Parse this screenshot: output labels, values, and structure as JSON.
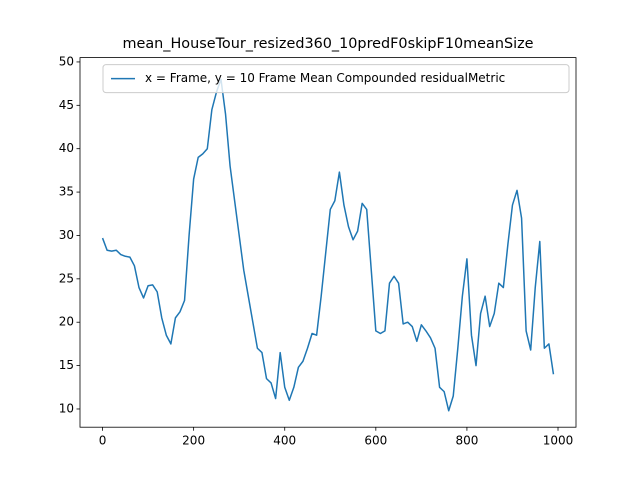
{
  "chart_data": {
    "type": "line",
    "title": "mean_HouseTour_resized360_10predF0skipF10meanSize",
    "x": [
      0,
      10,
      20,
      30,
      40,
      50,
      60,
      70,
      80,
      90,
      100,
      110,
      120,
      130,
      140,
      150,
      160,
      170,
      180,
      190,
      200,
      210,
      220,
      230,
      240,
      250,
      260,
      270,
      280,
      290,
      300,
      310,
      320,
      330,
      340,
      350,
      360,
      370,
      380,
      390,
      400,
      410,
      420,
      430,
      440,
      450,
      460,
      470,
      480,
      490,
      500,
      510,
      520,
      530,
      540,
      550,
      560,
      570,
      580,
      590,
      600,
      610,
      620,
      630,
      640,
      650,
      660,
      670,
      680,
      690,
      700,
      710,
      720,
      730,
      740,
      750,
      760,
      770,
      780,
      790,
      800,
      810,
      820,
      830,
      840,
      850,
      860,
      870,
      880,
      890,
      900,
      910,
      920,
      930,
      940,
      950,
      960,
      970,
      980,
      990
    ],
    "series": [
      {
        "name": "x = Frame, y = 10 Frame Mean Compounded residualMetric",
        "color": "#1f77b4",
        "values": [
          29.7,
          28.3,
          28.2,
          28.3,
          27.8,
          27.6,
          27.5,
          26.5,
          24,
          22.8,
          24.2,
          24.3,
          23.5,
          20.5,
          18.5,
          17.5,
          20.5,
          21.2,
          22.5,
          30,
          36.5,
          39,
          39.4,
          40,
          44.5,
          46.5,
          48,
          44,
          38,
          34,
          30,
          26,
          23,
          20,
          17,
          16.5,
          13.5,
          13,
          11.2,
          16.5,
          12.5,
          11,
          12.5,
          14.8,
          15.5,
          17,
          18.7,
          18.5,
          23,
          28,
          33,
          34,
          37.3,
          33.5,
          31,
          29.5,
          30.5,
          33.7,
          33,
          26,
          19,
          18.7,
          19,
          24.5,
          25.3,
          24.5,
          19.8,
          20,
          19.5,
          17.8,
          19.7,
          19,
          18.2,
          17,
          12.5,
          12,
          9.8,
          11.5,
          17,
          23,
          27.3,
          18.5,
          15,
          21,
          23,
          19.5,
          21,
          24.5,
          24,
          29,
          33.5,
          35.2,
          32,
          19,
          16.8,
          24,
          29.3,
          17,
          17.5,
          14
        ]
      }
    ],
    "xlim": [
      -49.5,
      1039.5
    ],
    "ylim": [
      7.9,
      50.5
    ],
    "xticks": [
      0,
      200,
      400,
      600,
      800,
      1000
    ],
    "yticks": [
      10,
      15,
      20,
      25,
      30,
      35,
      40,
      45,
      50
    ],
    "legend": "upper right",
    "grid": false
  }
}
